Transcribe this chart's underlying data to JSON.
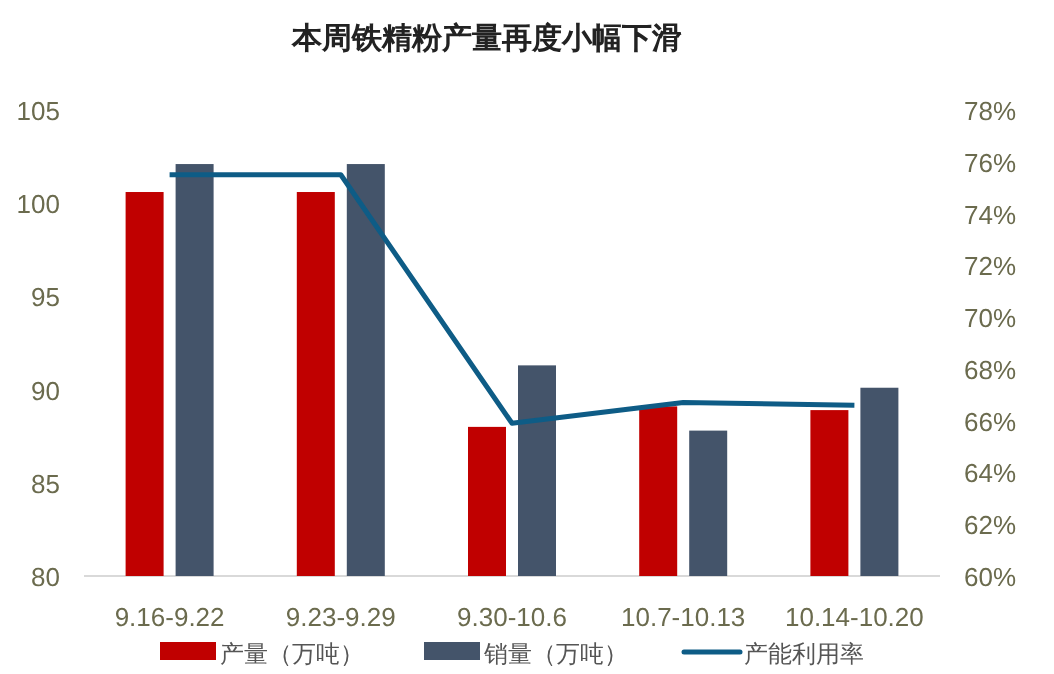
{
  "chart_data": {
    "type": "bar",
    "title": "本周铁精粉产量再度小幅下滑",
    "categories": [
      "9.16-9.22",
      "9.23-9.29",
      "9.30-10.6",
      "10.7-10.13",
      "10.14-10.20"
    ],
    "series": [
      {
        "name": "产量（万吨）",
        "color": "#c00000",
        "values": [
          100.6,
          100.6,
          88.0,
          89.1,
          88.9
        ]
      },
      {
        "name": "销量（万吨）",
        "color": "#44546a",
        "values": [
          102.1,
          102.1,
          91.3,
          87.8,
          90.1
        ]
      },
      {
        "name": "产能利用率",
        "type": "line",
        "axis": "y2",
        "color": "#0e5c86",
        "values": [
          75.5,
          75.5,
          65.9,
          66.7,
          66.6
        ]
      }
    ],
    "ylim": [
      80,
      105
    ],
    "yticks": [
      80,
      85,
      90,
      95,
      100,
      105
    ],
    "y2lim": [
      60,
      78
    ],
    "y2ticks": [
      {
        "value": 60,
        "label": "60%"
      },
      {
        "value": 62,
        "label": "62%"
      },
      {
        "value": 64,
        "label": "64%"
      },
      {
        "value": 66,
        "label": "66%"
      },
      {
        "value": 68,
        "label": "68%"
      },
      {
        "value": 70,
        "label": "70%"
      },
      {
        "value": 72,
        "label": "72%"
      },
      {
        "value": 74,
        "label": "74%"
      },
      {
        "value": 76,
        "label": "76%"
      },
      {
        "value": 78,
        "label": "78%"
      }
    ],
    "grid": false,
    "legend": "bottom"
  }
}
